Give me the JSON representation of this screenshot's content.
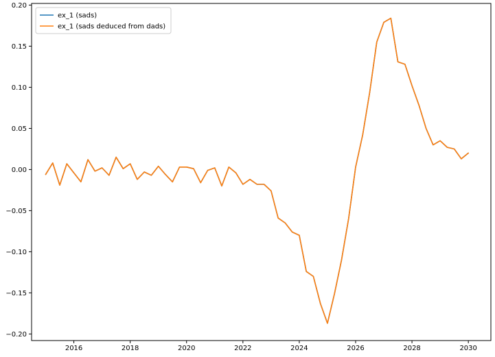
{
  "chart_data": {
    "type": "line",
    "title": "",
    "xlabel": "",
    "ylabel": "",
    "xlim": [
      2014.5,
      2030.8
    ],
    "ylim": [
      -0.208,
      0.202
    ],
    "grid": false,
    "legend_position": "top-left",
    "x_ticks": [
      2016,
      2018,
      2020,
      2022,
      2024,
      2026,
      2028,
      2030
    ],
    "x_tick_labels": [
      "2016",
      "2018",
      "2020",
      "2022",
      "2024",
      "2026",
      "2028",
      "2030"
    ],
    "y_ticks": [
      -0.2,
      -0.15,
      -0.1,
      -0.05,
      0.0,
      0.05,
      0.1,
      0.15,
      0.2
    ],
    "y_tick_labels": [
      "−0.20",
      "−0.15",
      "−0.10",
      "−0.05",
      "0.00",
      "0.05",
      "0.10",
      "0.15",
      "0.20"
    ],
    "x": [
      2015.0,
      2015.25,
      2015.5,
      2015.75,
      2016.0,
      2016.25,
      2016.5,
      2016.75,
      2017.0,
      2017.25,
      2017.5,
      2017.75,
      2018.0,
      2018.25,
      2018.5,
      2018.75,
      2019.0,
      2019.25,
      2019.5,
      2019.75,
      2020.0,
      2020.25,
      2020.5,
      2020.75,
      2021.0,
      2021.25,
      2021.5,
      2021.75,
      2022.0,
      2022.25,
      2022.5,
      2022.75,
      2023.0,
      2023.25,
      2023.5,
      2023.75,
      2024.0,
      2024.25,
      2024.5,
      2024.75,
      2025.0,
      2025.25,
      2025.5,
      2025.75,
      2026.0,
      2026.25,
      2026.5,
      2026.75,
      2027.0,
      2027.25,
      2027.5,
      2027.75,
      2028.0,
      2028.25,
      2028.5,
      2028.75,
      2029.0,
      2029.25,
      2029.5,
      2029.75,
      2030.0
    ],
    "series": [
      {
        "name": "ex_1 (sads)",
        "color": "#1f77b4",
        "values": [
          -0.006,
          0.008,
          -0.019,
          0.007,
          -0.004,
          -0.015,
          0.012,
          -0.002,
          0.002,
          -0.007,
          0.015,
          0.001,
          0.007,
          -0.012,
          -0.003,
          -0.007,
          0.004,
          -0.006,
          -0.015,
          0.003,
          0.003,
          0.001,
          -0.016,
          -0.001,
          0.002,
          -0.02,
          0.003,
          -0.004,
          -0.018,
          -0.012,
          -0.018,
          -0.018,
          -0.026,
          -0.059,
          -0.065,
          -0.076,
          -0.08,
          -0.124,
          -0.13,
          -0.163,
          -0.187,
          -0.151,
          -0.11,
          -0.06,
          0.003,
          0.042,
          0.094,
          0.155,
          0.179,
          0.184,
          0.131,
          0.128,
          0.102,
          0.078,
          0.05,
          0.03,
          0.035,
          0.027,
          0.025,
          0.013,
          0.02
        ]
      },
      {
        "name": "ex_1 (sads deduced from dads)",
        "color": "#ff7f0e",
        "values": [
          -0.006,
          0.008,
          -0.019,
          0.007,
          -0.004,
          -0.015,
          0.012,
          -0.002,
          0.002,
          -0.007,
          0.015,
          0.001,
          0.007,
          -0.012,
          -0.003,
          -0.007,
          0.004,
          -0.006,
          -0.015,
          0.003,
          0.003,
          0.001,
          -0.016,
          -0.001,
          0.002,
          -0.02,
          0.003,
          -0.004,
          -0.018,
          -0.012,
          -0.018,
          -0.018,
          -0.026,
          -0.059,
          -0.065,
          -0.076,
          -0.08,
          -0.124,
          -0.13,
          -0.163,
          -0.187,
          -0.151,
          -0.11,
          -0.06,
          0.003,
          0.042,
          0.094,
          0.155,
          0.179,
          0.184,
          0.131,
          0.128,
          0.102,
          0.078,
          0.05,
          0.03,
          0.035,
          0.027,
          0.025,
          0.013,
          0.02
        ]
      }
    ]
  }
}
